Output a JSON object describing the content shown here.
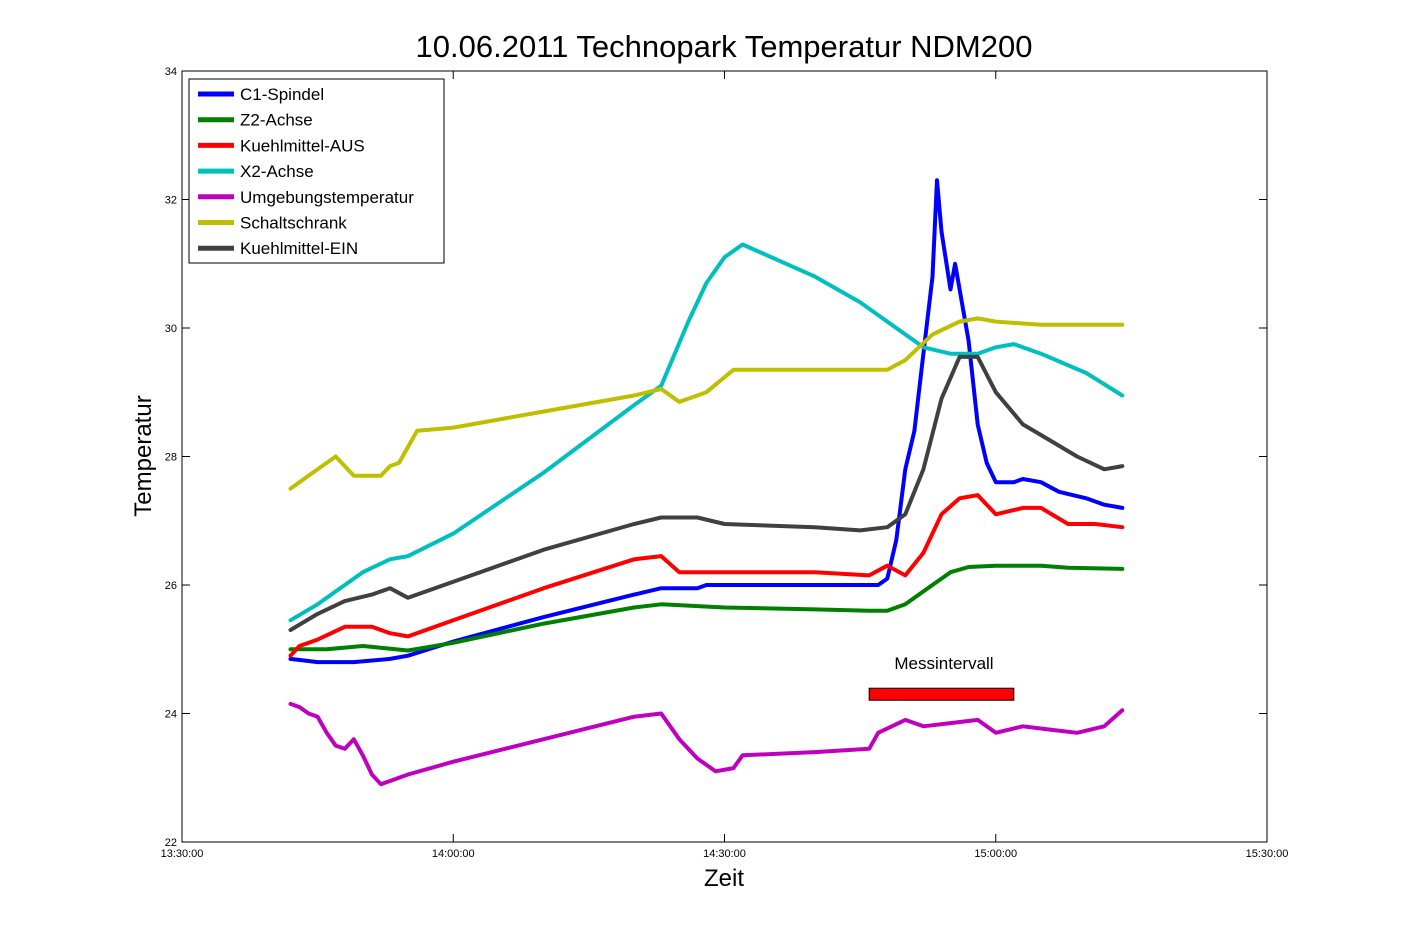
{
  "chart_data": {
    "type": "line",
    "title": "10.06.2011 Technopark Temperatur NDM200",
    "xlabel": "Zeit",
    "ylabel": "Temperatur",
    "xlim": [
      "13:30:00",
      "15:30:00"
    ],
    "ylim": [
      22,
      34
    ],
    "x_ticks": [
      "13:30:00",
      "14:00:00",
      "14:30:00",
      "15:00:00",
      "15:30:00"
    ],
    "y_ticks": [
      "22",
      "24",
      "26",
      "28",
      "30",
      "32",
      "34"
    ],
    "grid": false,
    "legend_position": "top-left",
    "annotations": [
      {
        "text": "Messintervall",
        "from": "14:46:00",
        "to": "15:02:00",
        "y": 24.3,
        "color": "#ff0000"
      }
    ],
    "series": [
      {
        "name": "C1-Spindel",
        "color": "#0000ff",
        "points": [
          [
            "13:42:00",
            24.85
          ],
          [
            "13:45:00",
            24.8
          ],
          [
            "13:49:00",
            24.8
          ],
          [
            "13:53:00",
            24.85
          ],
          [
            "13:55:00",
            24.9
          ],
          [
            "14:00:00",
            25.12
          ],
          [
            "14:10:00",
            25.5
          ],
          [
            "14:20:00",
            25.85
          ],
          [
            "14:23:00",
            25.95
          ],
          [
            "14:27:00",
            25.95
          ],
          [
            "14:28:00",
            26.0
          ],
          [
            "14:40:00",
            26.0
          ],
          [
            "14:47:00",
            26.0
          ],
          [
            "14:48:00",
            26.1
          ],
          [
            "14:49:00",
            26.7
          ],
          [
            "14:50:00",
            27.8
          ],
          [
            "14:51:00",
            28.4
          ],
          [
            "14:52:00",
            29.6
          ],
          [
            "14:53:00",
            30.8
          ],
          [
            "14:53:30",
            32.3
          ],
          [
            "14:54:00",
            31.5
          ],
          [
            "14:55:00",
            30.6
          ],
          [
            "14:55:30",
            31.0
          ],
          [
            "14:56:00",
            30.6
          ],
          [
            "14:57:00",
            29.8
          ],
          [
            "14:58:00",
            28.5
          ],
          [
            "14:59:00",
            27.9
          ],
          [
            "15:00:00",
            27.6
          ],
          [
            "15:02:00",
            27.6
          ],
          [
            "15:03:00",
            27.65
          ],
          [
            "15:05:00",
            27.6
          ],
          [
            "15:07:00",
            27.45
          ],
          [
            "15:10:00",
            27.35
          ],
          [
            "15:12:00",
            27.25
          ],
          [
            "15:14:00",
            27.2
          ]
        ]
      },
      {
        "name": "Z2-Achse",
        "color": "#008000",
        "points": [
          [
            "13:42:00",
            25.0
          ],
          [
            "13:46:00",
            25.0
          ],
          [
            "13:50:00",
            25.05
          ],
          [
            "13:55:00",
            24.98
          ],
          [
            "14:00:00",
            25.1
          ],
          [
            "14:10:00",
            25.4
          ],
          [
            "14:20:00",
            25.65
          ],
          [
            "14:23:00",
            25.7
          ],
          [
            "14:30:00",
            25.65
          ],
          [
            "14:40:00",
            25.62
          ],
          [
            "14:46:00",
            25.6
          ],
          [
            "14:48:00",
            25.6
          ],
          [
            "14:50:00",
            25.7
          ],
          [
            "14:52:00",
            25.9
          ],
          [
            "14:55:00",
            26.2
          ],
          [
            "14:57:00",
            26.28
          ],
          [
            "15:00:00",
            26.3
          ],
          [
            "15:05:00",
            26.3
          ],
          [
            "15:08:00",
            26.27
          ],
          [
            "15:14:00",
            26.25
          ]
        ]
      },
      {
        "name": "Kuehlmittel-AUS",
        "color": "#ff0000",
        "points": [
          [
            "13:42:00",
            24.9
          ],
          [
            "13:43:00",
            25.05
          ],
          [
            "13:45:00",
            25.15
          ],
          [
            "13:48:00",
            25.35
          ],
          [
            "13:51:00",
            25.35
          ],
          [
            "13:53:00",
            25.25
          ],
          [
            "13:55:00",
            25.2
          ],
          [
            "14:00:00",
            25.45
          ],
          [
            "14:10:00",
            25.95
          ],
          [
            "14:20:00",
            26.4
          ],
          [
            "14:23:00",
            26.45
          ],
          [
            "14:25:00",
            26.2
          ],
          [
            "14:30:00",
            26.2
          ],
          [
            "14:40:00",
            26.2
          ],
          [
            "14:46:00",
            26.15
          ],
          [
            "14:48:00",
            26.3
          ],
          [
            "14:50:00",
            26.15
          ],
          [
            "14:52:00",
            26.5
          ],
          [
            "14:54:00",
            27.1
          ],
          [
            "14:56:00",
            27.35
          ],
          [
            "14:58:00",
            27.4
          ],
          [
            "15:00:00",
            27.1
          ],
          [
            "15:03:00",
            27.2
          ],
          [
            "15:05:00",
            27.2
          ],
          [
            "15:08:00",
            26.95
          ],
          [
            "15:11:00",
            26.95
          ],
          [
            "15:14:00",
            26.9
          ]
        ]
      },
      {
        "name": "X2-Achse",
        "color": "#00bfbf",
        "points": [
          [
            "13:42:00",
            25.45
          ],
          [
            "13:45:00",
            25.7
          ],
          [
            "13:50:00",
            26.2
          ],
          [
            "13:53:00",
            26.4
          ],
          [
            "13:55:00",
            26.45
          ],
          [
            "14:00:00",
            26.8
          ],
          [
            "14:10:00",
            27.75
          ],
          [
            "14:20:00",
            28.8
          ],
          [
            "14:23:00",
            29.1
          ],
          [
            "14:26:00",
            30.1
          ],
          [
            "14:28:00",
            30.7
          ],
          [
            "14:30:00",
            31.1
          ],
          [
            "14:32:00",
            31.3
          ],
          [
            "14:40:00",
            30.8
          ],
          [
            "14:45:00",
            30.4
          ],
          [
            "14:50:00",
            29.9
          ],
          [
            "14:52:00",
            29.7
          ],
          [
            "14:55:00",
            29.6
          ],
          [
            "14:58:00",
            29.6
          ],
          [
            "15:00:00",
            29.7
          ],
          [
            "15:02:00",
            29.75
          ],
          [
            "15:05:00",
            29.6
          ],
          [
            "15:10:00",
            29.3
          ],
          [
            "15:14:00",
            28.95
          ]
        ]
      },
      {
        "name": "Umgebungstemperatur",
        "color": "#bf00bf",
        "points": [
          [
            "13:42:00",
            24.15
          ],
          [
            "13:43:00",
            24.1
          ],
          [
            "13:44:00",
            24.0
          ],
          [
            "13:45:00",
            23.95
          ],
          [
            "13:46:00",
            23.7
          ],
          [
            "13:47:00",
            23.5
          ],
          [
            "13:48:00",
            23.45
          ],
          [
            "13:49:00",
            23.6
          ],
          [
            "13:50:00",
            23.35
          ],
          [
            "13:51:00",
            23.05
          ],
          [
            "13:52:00",
            22.9
          ],
          [
            "13:53:00",
            22.95
          ],
          [
            "13:55:00",
            23.05
          ],
          [
            "14:00:00",
            23.25
          ],
          [
            "14:10:00",
            23.6
          ],
          [
            "14:20:00",
            23.95
          ],
          [
            "14:23:00",
            24.0
          ],
          [
            "14:25:00",
            23.6
          ],
          [
            "14:27:00",
            23.3
          ],
          [
            "14:29:00",
            23.1
          ],
          [
            "14:31:00",
            23.15
          ],
          [
            "14:32:00",
            23.35
          ],
          [
            "14:40:00",
            23.4
          ],
          [
            "14:46:00",
            23.45
          ],
          [
            "14:47:00",
            23.7
          ],
          [
            "14:50:00",
            23.9
          ],
          [
            "14:52:00",
            23.8
          ],
          [
            "14:55:00",
            23.85
          ],
          [
            "14:58:00",
            23.9
          ],
          [
            "15:00:00",
            23.7
          ],
          [
            "15:03:00",
            23.8
          ],
          [
            "15:06:00",
            23.75
          ],
          [
            "15:09:00",
            23.7
          ],
          [
            "15:12:00",
            23.8
          ],
          [
            "15:14:00",
            24.05
          ]
        ]
      },
      {
        "name": "Schaltschrank",
        "color": "#bfbf00",
        "points": [
          [
            "13:42:00",
            27.5
          ],
          [
            "13:45:00",
            27.8
          ],
          [
            "13:47:00",
            28.0
          ],
          [
            "13:49:00",
            27.7
          ],
          [
            "13:52:00",
            27.7
          ],
          [
            "13:53:00",
            27.85
          ],
          [
            "13:54:00",
            27.9
          ],
          [
            "13:56:00",
            28.4
          ],
          [
            "14:00:00",
            28.45
          ],
          [
            "14:10:00",
            28.7
          ],
          [
            "14:20:00",
            28.95
          ],
          [
            "14:23:00",
            29.05
          ],
          [
            "14:25:00",
            28.85
          ],
          [
            "14:28:00",
            29.0
          ],
          [
            "14:31:00",
            29.35
          ],
          [
            "14:40:00",
            29.35
          ],
          [
            "14:46:00",
            29.35
          ],
          [
            "14:48:00",
            29.35
          ],
          [
            "14:50:00",
            29.5
          ],
          [
            "14:53:00",
            29.9
          ],
          [
            "14:56:00",
            30.1
          ],
          [
            "14:58:00",
            30.15
          ],
          [
            "15:00:00",
            30.1
          ],
          [
            "15:05:00",
            30.05
          ],
          [
            "15:10:00",
            30.05
          ],
          [
            "15:14:00",
            30.05
          ]
        ]
      },
      {
        "name": "Kuehlmittel-EIN",
        "color": "#404040",
        "points": [
          [
            "13:42:00",
            25.3
          ],
          [
            "13:45:00",
            25.55
          ],
          [
            "13:48:00",
            25.75
          ],
          [
            "13:51:00",
            25.85
          ],
          [
            "13:53:00",
            25.95
          ],
          [
            "13:55:00",
            25.8
          ],
          [
            "14:00:00",
            26.05
          ],
          [
            "14:10:00",
            26.55
          ],
          [
            "14:20:00",
            26.95
          ],
          [
            "14:23:00",
            27.05
          ],
          [
            "14:27:00",
            27.05
          ],
          [
            "14:30:00",
            26.95
          ],
          [
            "14:40:00",
            26.9
          ],
          [
            "14:45:00",
            26.85
          ],
          [
            "14:48:00",
            26.9
          ],
          [
            "14:50:00",
            27.1
          ],
          [
            "14:52:00",
            27.8
          ],
          [
            "14:54:00",
            28.9
          ],
          [
            "14:56:00",
            29.55
          ],
          [
            "14:58:00",
            29.55
          ],
          [
            "15:00:00",
            29.0
          ],
          [
            "15:03:00",
            28.5
          ],
          [
            "15:06:00",
            28.25
          ],
          [
            "15:09:00",
            28.0
          ],
          [
            "15:12:00",
            27.8
          ],
          [
            "15:14:00",
            27.85
          ]
        ]
      }
    ]
  }
}
